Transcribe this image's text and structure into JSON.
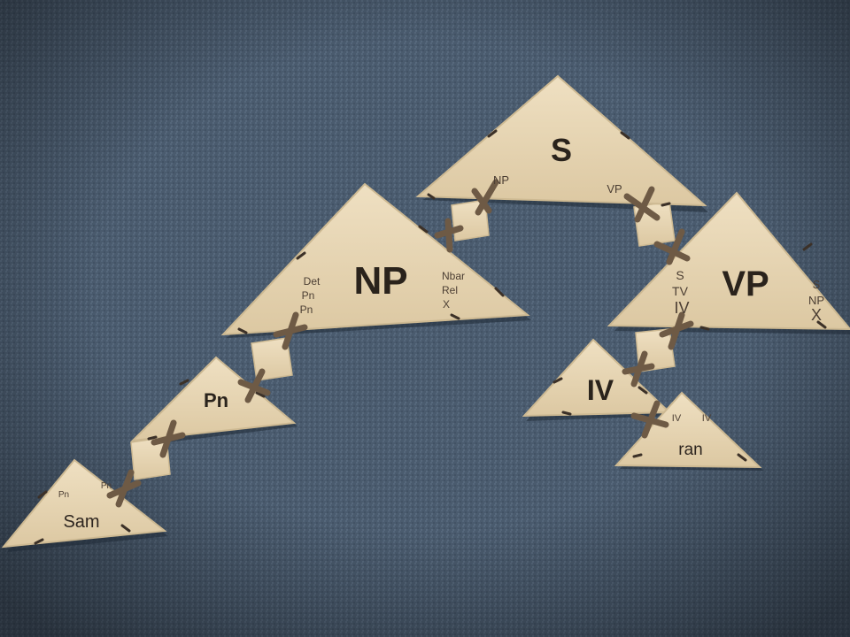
{
  "colors": {
    "carpet": "#4a5b6e",
    "wood": "#e6d5b4",
    "wood_edge": "#cdb992",
    "connector": "#e4d2b0",
    "clip": "#6e5a45",
    "ink": "#2a231c"
  },
  "tree": {
    "s": {
      "label": "S",
      "left_slot": "NP",
      "right_slot": "VP"
    },
    "np": {
      "label": "NP",
      "left_options": [
        "Det",
        "Pn",
        "Pn"
      ],
      "right_options": [
        "Nbar",
        "Rel",
        "X"
      ]
    },
    "vp": {
      "label": "VP",
      "left_options": [
        "S",
        "TV",
        "IV"
      ],
      "right_options": [
        "S",
        "NP",
        "X"
      ]
    },
    "pn": {
      "label": "Pn"
    },
    "iv": {
      "label": "IV"
    },
    "sam": {
      "word": "Sam",
      "slot_left": "Pn",
      "slot_right": "Pn"
    },
    "ran": {
      "word": "ran",
      "slot_left": "IV",
      "slot_right": "IV"
    }
  }
}
